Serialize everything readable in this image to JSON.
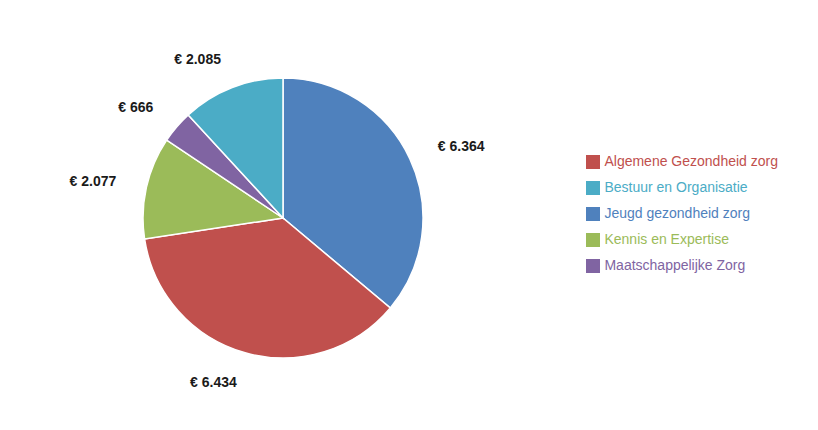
{
  "chart_data": {
    "type": "pie",
    "categories": [
      "Jeugd gezondheid zorg",
      "Algemene Gezondheid zorg",
      "Kennis en Expertise",
      "Maatschappelijke Zorg",
      "Bestuur en Organisatie"
    ],
    "values": [
      6364,
      6434,
      2077,
      666,
      2085
    ],
    "value_labels": [
      "€ 6.364",
      "€ 6.434",
      "€ 2.077",
      "€ 666",
      "€ 2.085"
    ],
    "colors": [
      "#4F81BD",
      "#C0504D",
      "#9BBB59",
      "#8064A2",
      "#4BACC6"
    ],
    "data_labels": true,
    "legend": "right"
  }
}
